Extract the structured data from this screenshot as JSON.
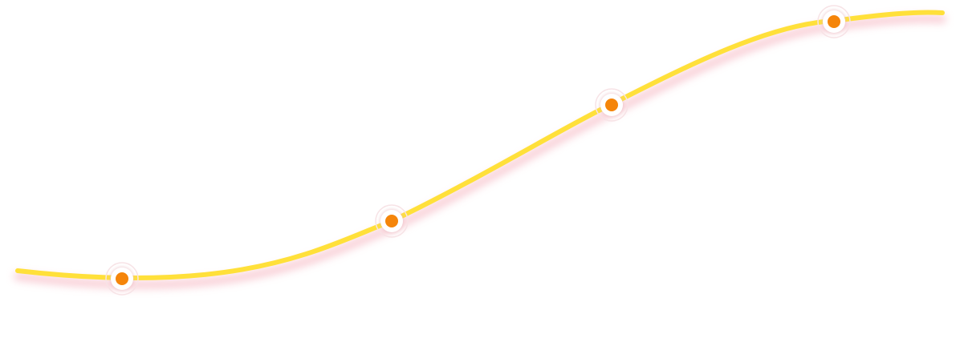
{
  "colors": {
    "background": "#ffffff",
    "curve": "#FFE03A",
    "curve_glow": "#F4A6B4",
    "marker_fill": "#F5850A",
    "marker_ring": "#ffffff"
  },
  "curve": {
    "shape": "s-curve",
    "direction": "rising-left-to-right"
  },
  "markers": [
    {
      "name": "milestone-marker-1"
    },
    {
      "name": "milestone-marker-2"
    },
    {
      "name": "milestone-marker-3"
    },
    {
      "name": "milestone-marker-4"
    }
  ]
}
